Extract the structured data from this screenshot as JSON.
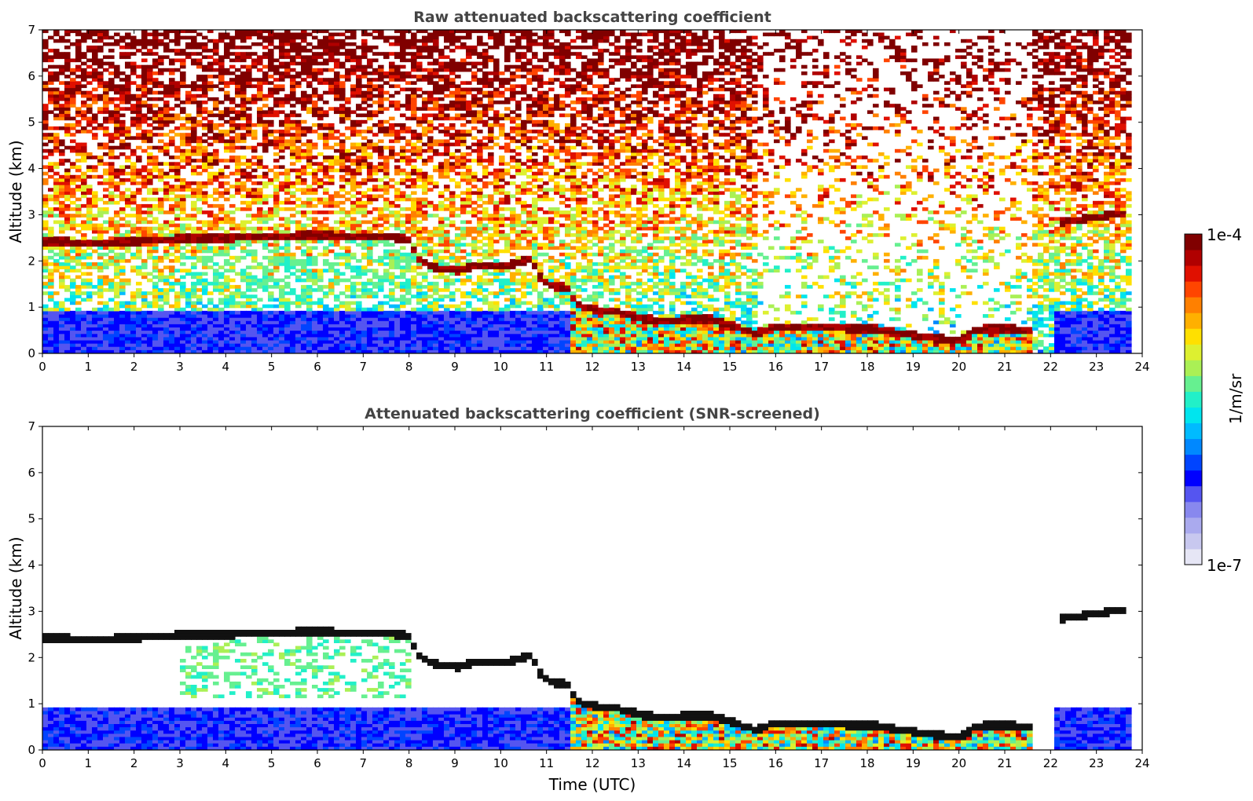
{
  "chart_data": [
    {
      "type": "heatmap",
      "title": "Raw attenuated backscattering coefficient",
      "xlabel": "",
      "ylabel": "Altitude (km)",
      "xlim": [
        0,
        24
      ],
      "ylim": [
        0,
        7
      ],
      "xticks": [
        "0",
        "1",
        "2",
        "3",
        "4",
        "5",
        "6",
        "7",
        "8",
        "9",
        "10",
        "11",
        "12",
        "13",
        "14",
        "15",
        "16",
        "17",
        "18",
        "19",
        "20",
        "21",
        "22",
        "23",
        "24"
      ],
      "yticks": [
        "0",
        "1",
        "2",
        "3",
        "4",
        "5",
        "6",
        "7"
      ],
      "screened": false,
      "cloud_layer": [
        [
          0,
          2.38
        ],
        [
          1,
          2.36
        ],
        [
          2,
          2.38
        ],
        [
          3,
          2.45
        ],
        [
          4,
          2.45
        ],
        [
          5,
          2.5
        ],
        [
          6,
          2.52
        ],
        [
          7,
          2.48
        ],
        [
          7.9,
          2.45
        ],
        [
          8.2,
          1.95
        ],
        [
          8.6,
          1.8
        ],
        [
          9,
          1.75
        ],
        [
          9.5,
          1.88
        ],
        [
          10,
          1.85
        ],
        [
          10.6,
          2.0
        ],
        [
          10.8,
          1.6
        ],
        [
          11,
          1.42
        ],
        [
          11.4,
          1.38
        ],
        [
          11.6,
          1.0
        ],
        [
          12,
          0.9
        ],
        [
          12.5,
          0.85
        ],
        [
          13,
          0.72
        ],
        [
          13.5,
          0.65
        ],
        [
          14,
          0.7
        ],
        [
          14.5,
          0.7
        ],
        [
          15,
          0.55
        ],
        [
          15.5,
          0.4
        ],
        [
          16,
          0.55
        ],
        [
          16.5,
          0.5
        ],
        [
          17,
          0.55
        ],
        [
          17.5,
          0.5
        ],
        [
          18,
          0.5
        ],
        [
          18.5,
          0.42
        ],
        [
          19,
          0.35
        ],
        [
          19.5,
          0.28
        ],
        [
          20,
          0.25
        ],
        [
          20.3,
          0.45
        ],
        [
          20.6,
          0.5
        ],
        [
          21,
          0.5
        ],
        [
          21.4,
          0.45
        ]
      ],
      "upper_layer": [
        [
          22.2,
          2.8
        ],
        [
          22.6,
          2.85
        ],
        [
          23,
          2.92
        ],
        [
          23.5,
          2.98
        ]
      ]
    },
    {
      "type": "heatmap",
      "title": "Attenuated backscattering coefficient (SNR-screened)",
      "xlabel": "Time (UTC)",
      "ylabel": "Altitude (km)",
      "xlim": [
        0,
        24
      ],
      "ylim": [
        0,
        7
      ],
      "xticks": [
        "0",
        "1",
        "2",
        "3",
        "4",
        "5",
        "6",
        "7",
        "8",
        "9",
        "10",
        "11",
        "12",
        "13",
        "14",
        "15",
        "16",
        "17",
        "18",
        "19",
        "20",
        "21",
        "22",
        "23",
        "24"
      ],
      "yticks": [
        "0",
        "1",
        "2",
        "3",
        "4",
        "5",
        "6",
        "7"
      ],
      "screened": true
    }
  ],
  "colorbar": {
    "max_label": "1e-4",
    "min_label": "1e-7",
    "unit_label": "1/m/sr",
    "colors": [
      "#e6e6f5",
      "#c8c8ef",
      "#aaaaee",
      "#8888ee",
      "#5555f0",
      "#0000ff",
      "#0044ff",
      "#0088ff",
      "#00bbff",
      "#00e5ee",
      "#22f0c8",
      "#66f090",
      "#aaf055",
      "#ddf030",
      "#ffe000",
      "#ffb000",
      "#ff8000",
      "#ff4500",
      "#e01000",
      "#b00000",
      "#800000"
    ]
  }
}
